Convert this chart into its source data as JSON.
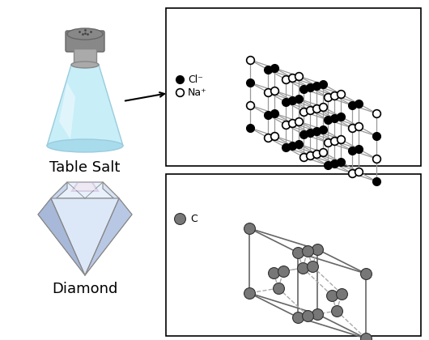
{
  "bg_color": "#ffffff",
  "title_salt": "Table Salt",
  "title_diamond": "Diamond",
  "salt_legend_cl": "Cl⁻",
  "salt_legend_na": "Na⁺",
  "diamond_legend_c": "C",
  "salt_line_color": "#999999",
  "diamond_line_color": "#666666",
  "diamond_atom_color": "#777777",
  "diamond_atom_edge": "#333333"
}
